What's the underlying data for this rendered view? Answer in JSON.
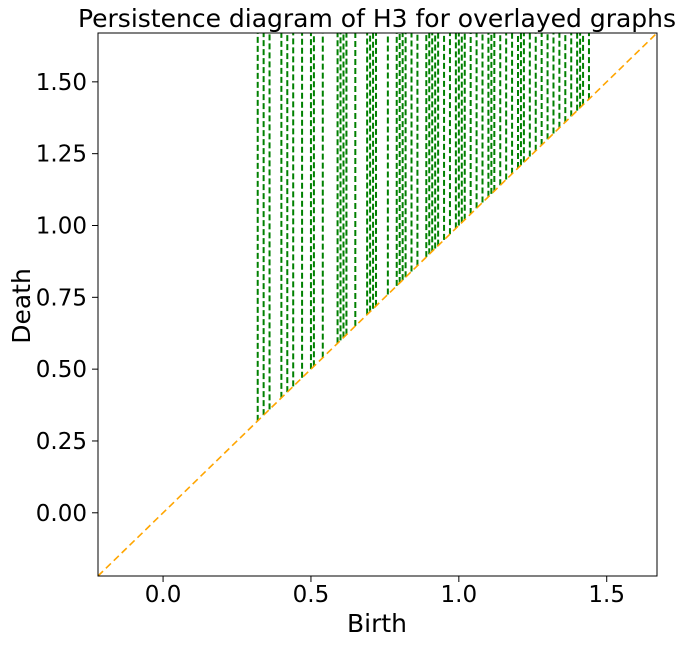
{
  "chart_data": {
    "type": "scatter",
    "title": "Persistence diagram of H3 for overlayed graphs",
    "xlabel": "Birth",
    "ylabel": "Death",
    "xlim": [
      -0.22,
      1.67
    ],
    "ylim": [
      -0.22,
      1.67
    ],
    "xticks": [
      0.0,
      0.5,
      1.0,
      1.5
    ],
    "xtick_labels": [
      "0.0",
      "0.5",
      "1.0",
      "1.5"
    ],
    "yticks": [
      0.0,
      0.25,
      0.5,
      0.75,
      1.0,
      1.25,
      1.5
    ],
    "ytick_labels": [
      "0.00",
      "0.25",
      "0.50",
      "0.75",
      "1.00",
      "1.25",
      "1.50"
    ],
    "grid": false,
    "colors": {
      "intervals": "#008000",
      "diagonal": "#ffa500",
      "frame": "#000000"
    },
    "series": [
      {
        "kind": "infinite-death vertical dashed lines",
        "births": [
          0.32,
          0.34,
          0.36,
          0.4,
          0.42,
          0.44,
          0.47,
          0.5,
          0.51,
          0.54,
          0.59,
          0.6,
          0.61,
          0.62,
          0.65,
          0.69,
          0.7,
          0.71,
          0.72,
          0.76,
          0.79,
          0.8,
          0.81,
          0.82,
          0.84,
          0.86,
          0.89,
          0.9,
          0.91,
          0.92,
          0.93,
          0.95,
          0.97,
          0.99,
          1.0,
          1.01,
          1.02,
          1.04,
          1.06,
          1.08,
          1.1,
          1.11,
          1.12,
          1.14,
          1.16,
          1.18,
          1.2,
          1.21,
          1.22,
          1.24,
          1.26,
          1.28,
          1.3,
          1.32,
          1.34,
          1.36,
          1.38,
          1.4,
          1.41,
          1.42,
          1.44
        ]
      },
      {
        "kind": "diagonal y = x dashed line"
      }
    ]
  }
}
